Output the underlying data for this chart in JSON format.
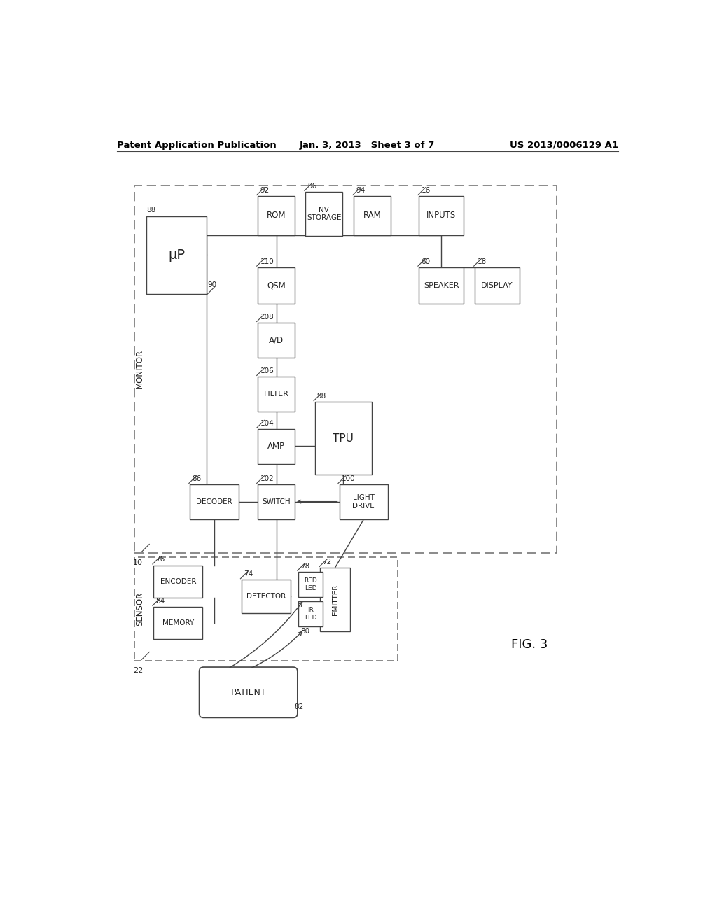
{
  "header_left": "Patent Application Publication",
  "header_center": "Jan. 3, 2013   Sheet 3 of 7",
  "header_right": "US 2013/0006129 A1",
  "fig_label": "FIG. 3",
  "bg_color": "#ffffff",
  "box_edge": "#444444",
  "line_color": "#444444",
  "text_color": "#222222"
}
